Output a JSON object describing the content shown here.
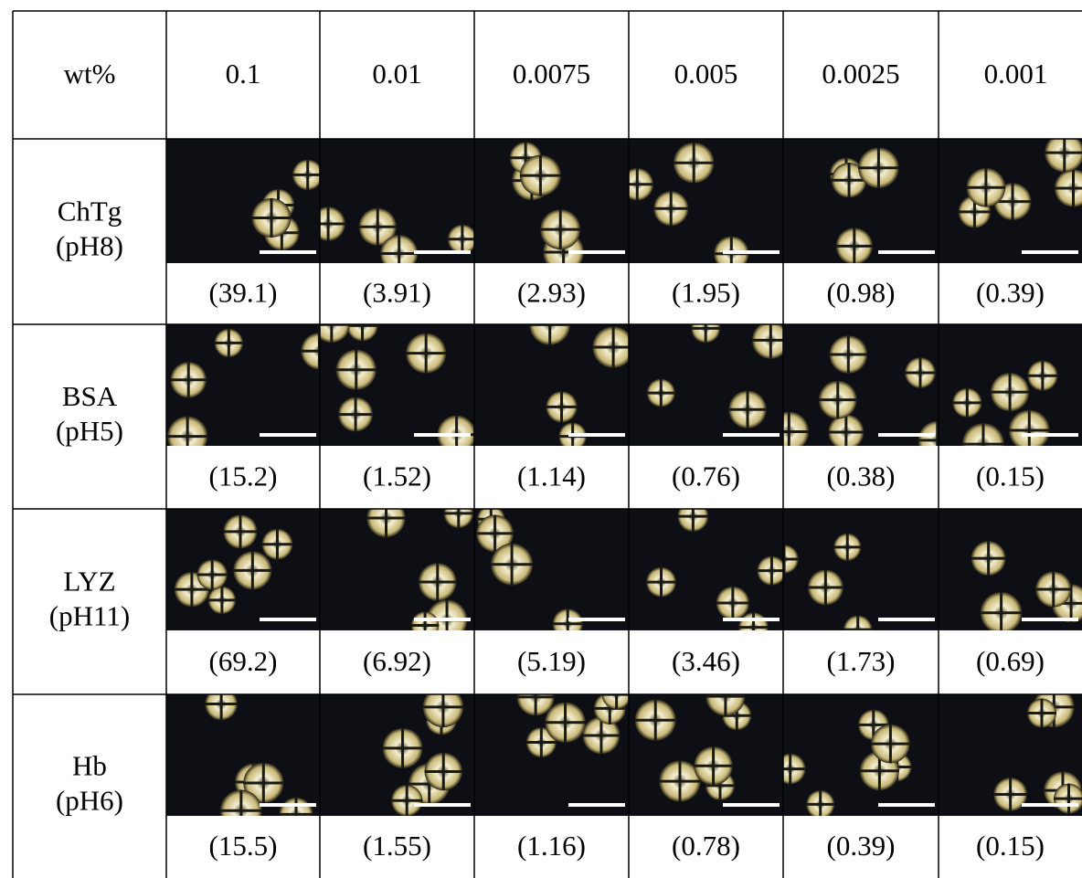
{
  "header": {
    "cells": [
      "wt%",
      "0.1",
      "0.01",
      "0.0075",
      "0.005",
      "0.0025",
      "0.001"
    ]
  },
  "rows": [
    {
      "label": [
        "ChTg",
        "(pH8)"
      ],
      "values": [
        "(39.1)",
        "(3.91)",
        "(2.93)",
        "(1.95)",
        "(0.98)",
        "(0.39)"
      ]
    },
    {
      "label": [
        "BSA",
        "(pH5)"
      ],
      "values": [
        "(15.2)",
        "(1.52)",
        "(1.14)",
        "(0.76)",
        "(0.38)",
        "(0.15)"
      ]
    },
    {
      "label": [
        "LYZ",
        "(pH11)"
      ],
      "values": [
        "(69.2)",
        "(6.92)",
        "(5.19)",
        "(3.46)",
        "(1.73)",
        "(0.69)"
      ]
    },
    {
      "label": [
        "Hb",
        "(pH6)"
      ],
      "values": [
        "(15.5)",
        "(1.55)",
        "(1.16)",
        "(0.78)",
        "(0.39)",
        "(0.15)"
      ]
    }
  ]
}
